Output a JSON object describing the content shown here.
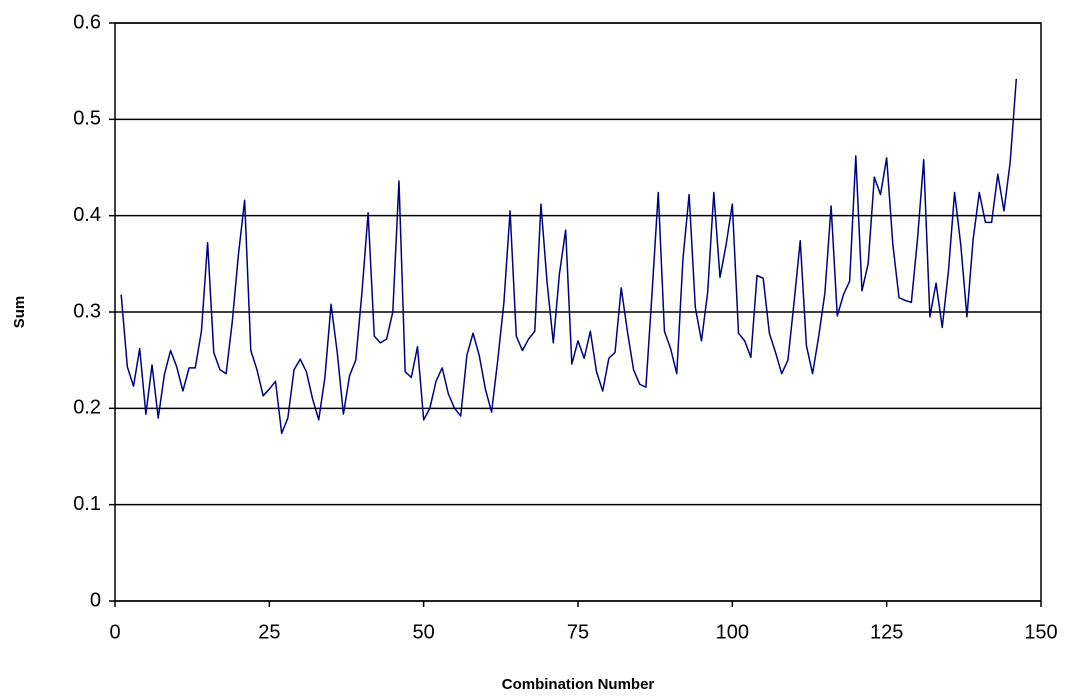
{
  "chart_data": {
    "type": "line",
    "x_label": "Combination Number",
    "y_label": "Sum",
    "x": [
      1,
      2,
      3,
      4,
      5,
      6,
      7,
      8,
      9,
      10,
      11,
      12,
      13,
      14,
      15,
      16,
      17,
      18,
      19,
      20,
      21,
      22,
      23,
      24,
      25,
      26,
      27,
      28,
      29,
      30,
      31,
      32,
      33,
      34,
      35,
      36,
      37,
      38,
      39,
      40,
      41,
      42,
      43,
      44,
      45,
      46,
      47,
      48,
      49,
      50,
      51,
      52,
      53,
      54,
      55,
      56,
      57,
      58,
      59,
      60,
      61,
      62,
      63,
      64,
      65,
      66,
      67,
      68,
      69,
      70,
      71,
      72,
      73,
      74,
      75,
      76,
      77,
      78,
      79,
      80,
      81,
      82,
      83,
      84,
      85,
      86,
      87,
      88,
      89,
      90,
      91,
      92,
      93,
      94,
      95,
      96,
      97,
      98,
      99,
      100,
      101,
      102,
      103,
      104,
      105,
      106,
      107,
      108,
      109,
      110,
      111,
      112,
      113,
      114,
      115,
      116,
      117,
      118,
      119,
      120,
      121,
      122,
      123,
      124,
      125,
      126,
      127,
      128,
      129,
      130,
      131,
      132,
      133,
      134,
      135,
      136,
      137,
      138,
      139,
      140,
      141,
      142,
      143,
      144,
      145,
      146
    ],
    "series": [
      {
        "color": "#000080",
        "values": [
          0.318,
          0.243,
          0.223,
          0.262,
          0.194,
          0.245,
          0.19,
          0.235,
          0.26,
          0.243,
          0.218,
          0.242,
          0.242,
          0.28,
          0.372,
          0.258,
          0.24,
          0.236,
          0.29,
          0.36,
          0.416,
          0.26,
          0.24,
          0.213,
          0.22,
          0.228,
          0.174,
          0.19,
          0.24,
          0.251,
          0.238,
          0.21,
          0.188,
          0.232,
          0.308,
          0.258,
          0.194,
          0.234,
          0.25,
          0.32,
          0.403,
          0.275,
          0.268,
          0.272,
          0.3,
          0.436,
          0.238,
          0.232,
          0.264,
          0.188,
          0.2,
          0.228,
          0.242,
          0.215,
          0.2,
          0.192,
          0.255,
          0.278,
          0.255,
          0.22,
          0.196,
          0.25,
          0.31,
          0.405,
          0.275,
          0.26,
          0.272,
          0.28,
          0.412,
          0.33,
          0.268,
          0.34,
          0.385,
          0.246,
          0.27,
          0.252,
          0.28,
          0.238,
          0.218,
          0.252,
          0.258,
          0.325,
          0.28,
          0.24,
          0.225,
          0.222,
          0.32,
          0.424,
          0.28,
          0.262,
          0.236,
          0.355,
          0.422,
          0.305,
          0.27,
          0.32,
          0.424,
          0.336,
          0.37,
          0.412,
          0.278,
          0.27,
          0.253,
          0.338,
          0.335,
          0.278,
          0.258,
          0.236,
          0.25,
          0.31,
          0.374,
          0.265,
          0.236,
          0.275,
          0.32,
          0.41,
          0.296,
          0.318,
          0.332,
          0.462,
          0.322,
          0.35,
          0.44,
          0.422,
          0.46,
          0.37,
          0.315,
          0.312,
          0.31,
          0.376,
          0.458,
          0.295,
          0.33,
          0.284,
          0.342,
          0.424,
          0.37,
          0.295,
          0.375,
          0.424,
          0.393,
          0.393,
          0.443,
          0.405,
          0.455,
          0.542
        ]
      }
    ],
    "xlim": [
      0,
      150
    ],
    "xticks": [
      0,
      25,
      50,
      75,
      100,
      125,
      150
    ],
    "ylim": [
      0,
      0.6
    ],
    "yticks": [
      0,
      0.1,
      0.2,
      0.3,
      0.4,
      0.5,
      0.6
    ],
    "grid": true
  }
}
